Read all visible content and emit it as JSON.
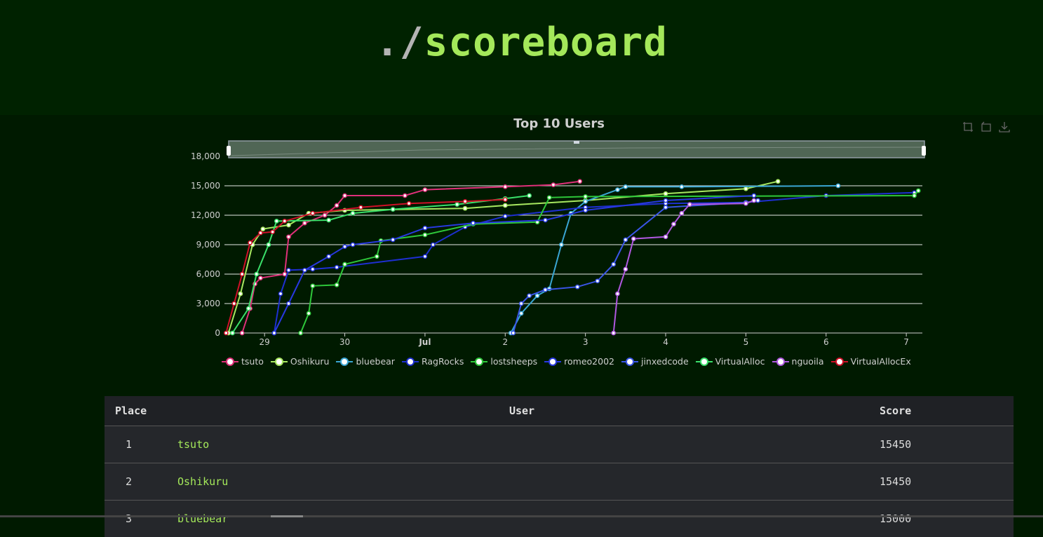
{
  "header": {
    "prefix": "./",
    "title": "scoreboard"
  },
  "chart": {
    "toolbox_icons": [
      "zoom-icon",
      "restore-icon",
      "download-icon"
    ]
  },
  "chart_data": {
    "type": "line",
    "title": "Top 10 Users",
    "xlabel": "",
    "ylabel": "",
    "x_tick_labels": [
      "29",
      "30",
      "Jul",
      "2",
      "3",
      "4",
      "5",
      "6",
      "7"
    ],
    "x_range_days": [
      "Jun 28",
      "Jul 7"
    ],
    "y_ticks": [
      0,
      3000,
      6000,
      9000,
      12000,
      15000,
      18000
    ],
    "ylim": [
      0,
      18000
    ],
    "grid": true,
    "legend_position": "bottom",
    "data_zoom_slider": true,
    "series": [
      {
        "name": "tsuto",
        "color": "#e0307a",
        "points": [
          [
            28.72,
            0
          ],
          [
            28.82,
            2500
          ],
          [
            28.88,
            5000
          ],
          [
            28.95,
            5600
          ],
          [
            29.25,
            6000
          ],
          [
            29.3,
            9800
          ],
          [
            29.5,
            11200
          ],
          [
            29.75,
            12000
          ],
          [
            29.9,
            13000
          ],
          [
            30.0,
            14000
          ],
          [
            30.75,
            14000
          ],
          [
            31.0,
            14600
          ],
          [
            32.0,
            14900
          ],
          [
            32.6,
            15100
          ],
          [
            32.93,
            15450
          ]
        ]
      },
      {
        "name": "Oshikuru",
        "color": "#a8e860",
        "points": [
          [
            28.55,
            0
          ],
          [
            28.7,
            4000
          ],
          [
            28.85,
            9000
          ],
          [
            28.98,
            10600
          ],
          [
            29.3,
            11000
          ],
          [
            29.55,
            12200
          ],
          [
            30.0,
            12500
          ],
          [
            31.5,
            12700
          ],
          [
            32.0,
            13000
          ],
          [
            33.0,
            13500
          ],
          [
            34.0,
            14200
          ],
          [
            35.0,
            14700
          ],
          [
            35.4,
            15450
          ]
        ]
      },
      {
        "name": "bluebear",
        "color": "#3aa6d4",
        "points": [
          [
            32.07,
            0
          ],
          [
            32.2,
            2000
          ],
          [
            32.4,
            3800
          ],
          [
            32.55,
            4500
          ],
          [
            32.7,
            9000
          ],
          [
            32.82,
            12200
          ],
          [
            33.0,
            13400
          ],
          [
            33.4,
            14600
          ],
          [
            33.5,
            14900
          ],
          [
            34.2,
            14900
          ],
          [
            36.15,
            15000
          ]
        ]
      },
      {
        "name": "RagRocks",
        "color": "#1e2fd0",
        "points": [
          [
            29.12,
            0
          ],
          [
            29.2,
            4000
          ],
          [
            29.3,
            6400
          ],
          [
            29.6,
            6500
          ],
          [
            29.9,
            6700
          ],
          [
            31.0,
            7800
          ],
          [
            31.1,
            9000
          ],
          [
            31.5,
            10800
          ],
          [
            32.0,
            11900
          ],
          [
            33.0,
            12800
          ],
          [
            34.0,
            13200
          ],
          [
            35.0,
            13300
          ],
          [
            36.0,
            14000
          ],
          [
            37.1,
            14300
          ]
        ]
      },
      {
        "name": "lostsheeps",
        "color": "#2ec83a",
        "points": [
          [
            29.45,
            0
          ],
          [
            29.55,
            2000
          ],
          [
            29.6,
            4800
          ],
          [
            29.9,
            4900
          ],
          [
            30.0,
            7000
          ],
          [
            30.4,
            7800
          ],
          [
            30.45,
            9400
          ],
          [
            31.0,
            10000
          ],
          [
            31.6,
            11100
          ],
          [
            32.4,
            11300
          ],
          [
            32.55,
            13800
          ],
          [
            33.0,
            13900
          ],
          [
            37.1,
            14000
          ],
          [
            37.15,
            14500
          ]
        ]
      },
      {
        "name": "romeo2002",
        "color": "#2838e0",
        "points": [
          [
            29.12,
            0
          ],
          [
            29.3,
            3000
          ],
          [
            29.5,
            6400
          ],
          [
            29.8,
            7800
          ],
          [
            30.0,
            8800
          ],
          [
            30.1,
            9000
          ],
          [
            30.6,
            9500
          ],
          [
            31.0,
            10700
          ],
          [
            31.6,
            11200
          ],
          [
            32.5,
            11500
          ],
          [
            33.0,
            12500
          ],
          [
            34.0,
            13500
          ],
          [
            35.1,
            14000
          ]
        ]
      },
      {
        "name": "jinxedcode",
        "color": "#3a55e8",
        "points": [
          [
            32.1,
            0
          ],
          [
            32.2,
            3000
          ],
          [
            32.3,
            3800
          ],
          [
            32.5,
            4400
          ],
          [
            32.9,
            4700
          ],
          [
            33.15,
            5300
          ],
          [
            33.35,
            7000
          ],
          [
            33.5,
            9500
          ],
          [
            34.0,
            12800
          ],
          [
            35.0,
            13300
          ],
          [
            35.15,
            13500
          ]
        ]
      },
      {
        "name": "VirtualAlloc",
        "color": "#3ae06a",
        "points": [
          [
            28.6,
            0
          ],
          [
            28.8,
            2500
          ],
          [
            28.9,
            6000
          ],
          [
            29.05,
            9000
          ],
          [
            29.15,
            11400
          ],
          [
            29.8,
            11500
          ],
          [
            30.1,
            12200
          ],
          [
            30.6,
            12600
          ],
          [
            31.4,
            13100
          ],
          [
            32.0,
            13700
          ],
          [
            32.3,
            14000
          ]
        ]
      },
      {
        "name": "nguoila",
        "color": "#b058e0",
        "points": [
          [
            33.35,
            0
          ],
          [
            33.4,
            4000
          ],
          [
            33.5,
            6500
          ],
          [
            33.6,
            9600
          ],
          [
            34.0,
            9800
          ],
          [
            34.1,
            11100
          ],
          [
            34.2,
            12200
          ],
          [
            34.3,
            13100
          ],
          [
            35.0,
            13200
          ],
          [
            35.1,
            13500
          ]
        ]
      },
      {
        "name": "VirtualAllocEx",
        "color": "#d01028",
        "points": [
          [
            28.52,
            0
          ],
          [
            28.62,
            3000
          ],
          [
            28.72,
            6000
          ],
          [
            28.82,
            9200
          ],
          [
            28.95,
            10200
          ],
          [
            29.1,
            10300
          ],
          [
            29.25,
            11400
          ],
          [
            29.6,
            12200
          ],
          [
            30.2,
            12800
          ],
          [
            30.8,
            13200
          ],
          [
            31.5,
            13400
          ],
          [
            32.0,
            13600
          ]
        ]
      }
    ]
  },
  "table": {
    "headers": {
      "place": "Place",
      "user": "User",
      "score": "Score"
    },
    "rows": [
      {
        "place": "1",
        "user": "tsuto",
        "score": "15450"
      },
      {
        "place": "2",
        "user": "Oshikuru",
        "score": "15450"
      },
      {
        "place": "3",
        "user": "bluebear",
        "score": "15000"
      }
    ]
  }
}
